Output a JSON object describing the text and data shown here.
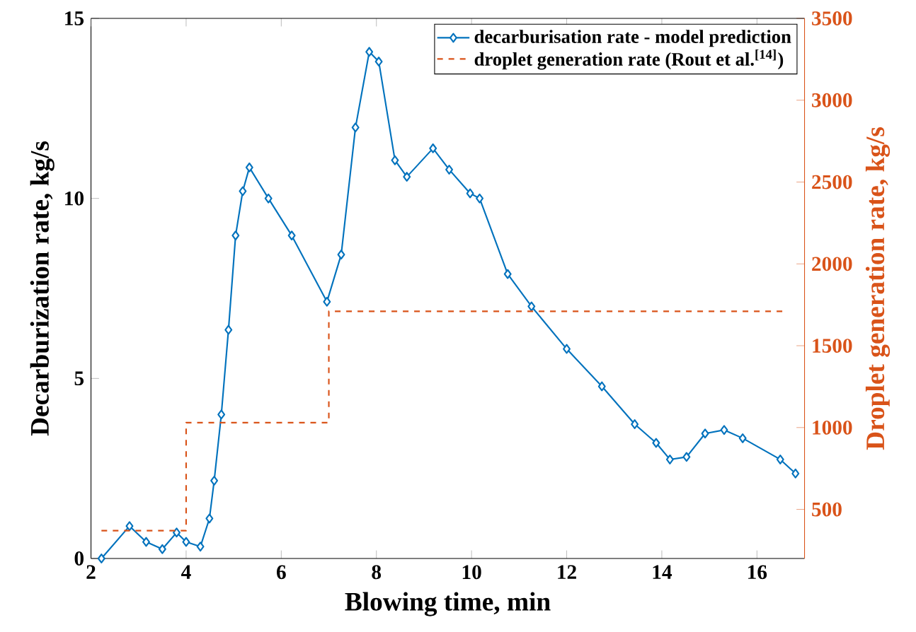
{
  "chart_data": {
    "type": "line",
    "xlabel": "Blowing time, min",
    "ylabel": "Decarburization rate, kg/s",
    "y2label": "Droplet generation rate, kg/s",
    "xlim": [
      2,
      17
    ],
    "xticks": [
      2,
      4,
      6,
      8,
      10,
      12,
      14,
      16
    ],
    "ylim": [
      0,
      15
    ],
    "yticks": [
      0,
      5,
      10,
      15
    ],
    "y2lim": [
      200,
      3500
    ],
    "y2ticks": [
      500,
      1000,
      1500,
      2000,
      2500,
      3000,
      3500
    ],
    "legend": "top right",
    "grid": false,
    "series": [
      {
        "name": "decarburisation rate - model prediction",
        "color": "#0072bd",
        "marker": "diamond",
        "line_style": "solid",
        "x": [
          2.22,
          2.81,
          3.16,
          3.5,
          3.8,
          4.0,
          4.3,
          4.49,
          4.59,
          4.74,
          4.89,
          5.04,
          5.19,
          5.33,
          5.73,
          6.22,
          6.96,
          7.26,
          7.56,
          7.85,
          8.05,
          8.39,
          8.64,
          9.19,
          9.53,
          9.97,
          10.17,
          10.76,
          11.26,
          12.0,
          12.74,
          13.43,
          13.88,
          14.17,
          14.52,
          14.91,
          15.31,
          15.7,
          16.49,
          16.81
        ],
        "values": [
          0,
          0.9,
          0.46,
          0.26,
          0.72,
          0.46,
          0.33,
          1.11,
          2.16,
          4.0,
          6.35,
          8.97,
          10.2,
          10.86,
          10.0,
          8.97,
          7.13,
          8.44,
          11.97,
          14.07,
          13.8,
          11.06,
          10.6,
          11.39,
          10.8,
          10.14,
          10.0,
          7.9,
          7.0,
          5.82,
          4.78,
          3.73,
          3.21,
          2.75,
          2.82,
          3.47,
          3.57,
          3.34,
          2.75,
          2.36
        ]
      },
      {
        "name": "droplet generation rate (Rout et al.$^{[14]}$)",
        "type": "step",
        "axis": "y2",
        "color": "#d95319",
        "marker": "none",
        "line_style": "dashed",
        "x": [
          2.22,
          4.0,
          7.0,
          16.54
        ],
        "values": [
          370,
          1030,
          1710,
          1710
        ]
      }
    ]
  }
}
